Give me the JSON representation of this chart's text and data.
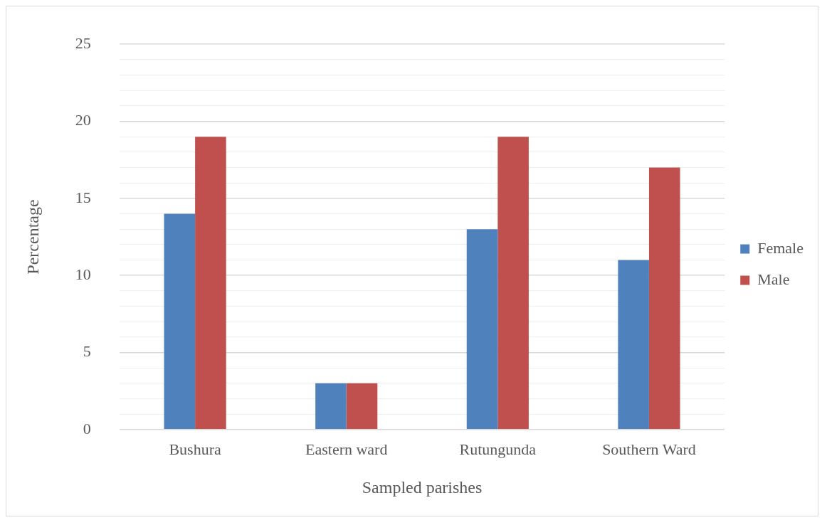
{
  "chart_data": {
    "type": "bar",
    "xlabel": "Sampled parishes",
    "ylabel": "Percentage",
    "categories": [
      "Bushura",
      "Eastern ward",
      "Rutungunda",
      "Southern Ward"
    ],
    "series": [
      {
        "name": "Female",
        "color": "#4f81bd",
        "values": [
          14,
          3,
          13,
          11
        ]
      },
      {
        "name": "Male",
        "color": "#c0504d",
        "values": [
          19,
          3,
          19,
          17
        ]
      }
    ],
    "ylim": [
      0,
      25
    ],
    "yticks": [
      0,
      {
        "value": 1,
        "label": null
      },
      {
        "value": 2,
        "label": null
      },
      {
        "value": 3,
        "label": null
      },
      {
        "value": 4,
        "label": null
      },
      5,
      {
        "value": 6,
        "label": null
      },
      {
        "value": 7,
        "label": null
      },
      {
        "value": 8,
        "label": null
      },
      {
        "value": 9,
        "label": null
      },
      10,
      {
        "value": 11,
        "label": null
      },
      {
        "value": 12,
        "label": null
      },
      {
        "value": 13,
        "label": null
      },
      {
        "value": 14,
        "label": null
      },
      15,
      {
        "value": 16,
        "label": null
      },
      {
        "value": 17,
        "label": null
      },
      {
        "value": 18,
        "label": null
      },
      {
        "value": 19,
        "label": null
      },
      20,
      {
        "value": 21,
        "label": null
      },
      {
        "value": 22,
        "label": null
      },
      {
        "value": 23,
        "label": null
      },
      {
        "value": 24,
        "label": null
      },
      25
    ],
    "grid": "y",
    "legend": "right"
  }
}
